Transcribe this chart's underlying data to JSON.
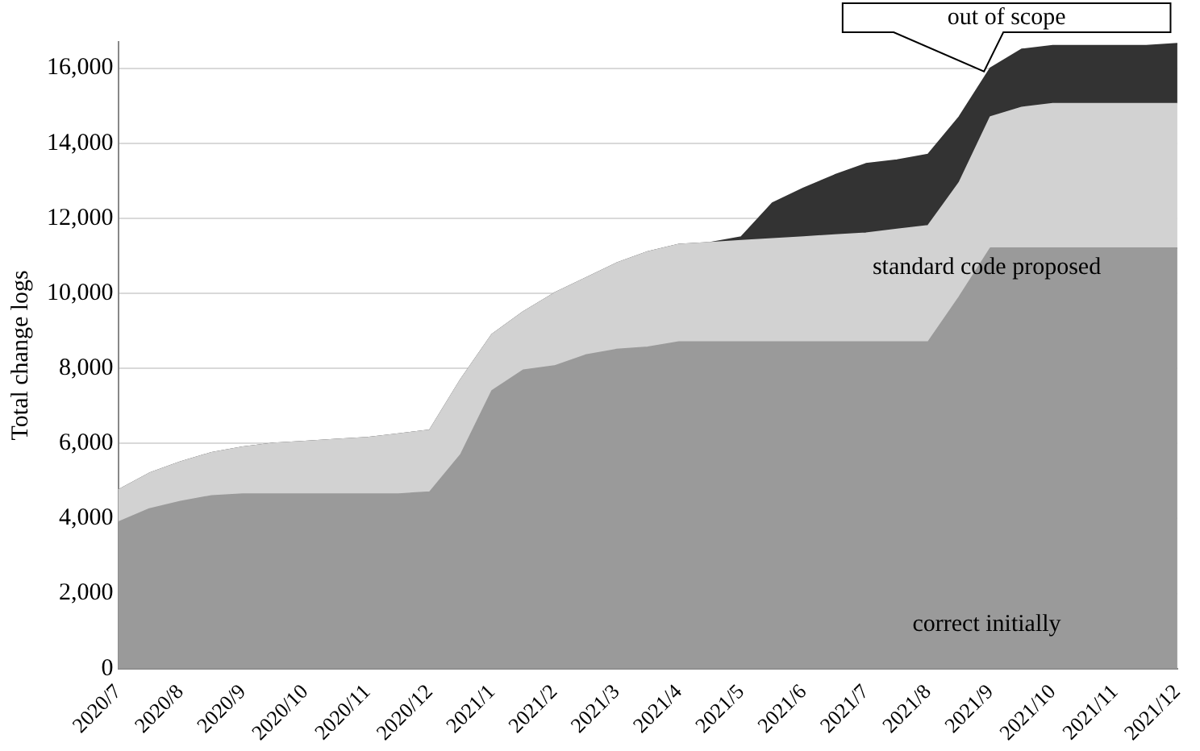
{
  "chart_data": {
    "type": "area",
    "stacked": true,
    "ylabel": "Total change logs",
    "categories": [
      "2020/7",
      null,
      "2020/8",
      null,
      "2020/9",
      null,
      "2020/10",
      null,
      "2020/11",
      null,
      "2020/12",
      null,
      "2021/1",
      null,
      "2021/2",
      null,
      "2021/3",
      null,
      "2021/4",
      null,
      "2021/5",
      null,
      "2021/6",
      null,
      "2021/7",
      null,
      "2021/8",
      null,
      "2021/9",
      null,
      "2021/10",
      null,
      "2021/11",
      null,
      "2021/12"
    ],
    "series": [
      {
        "color": "#9a9a9a",
        "values": [
          3900,
          4250,
          4450,
          4600,
          4650,
          4650,
          4650,
          4650,
          4650,
          4650,
          4700,
          5700,
          7400,
          7950,
          8060,
          8350,
          8500,
          8560,
          8700,
          8700,
          8700,
          8700,
          8700,
          8700,
          8700,
          8700,
          8700,
          9900,
          11200,
          11200,
          11200,
          11200,
          11200,
          11200,
          11200
        ]
      },
      {
        "color": "#d2d2d2",
        "values": [
          850,
          950,
          1050,
          1150,
          1250,
          1350,
          1400,
          1450,
          1500,
          1600,
          1650,
          2000,
          1500,
          1550,
          1940,
          2050,
          2300,
          2540,
          2600,
          2650,
          2700,
          2750,
          2800,
          2850,
          2900,
          3000,
          3100,
          3050,
          3500,
          3750,
          3850,
          3850,
          3850,
          3850,
          3850
        ]
      },
      {
        "color": "#333333",
        "values": [
          0,
          0,
          0,
          0,
          0,
          0,
          0,
          0,
          0,
          0,
          0,
          0,
          0,
          0,
          0,
          0,
          0,
          0,
          0,
          0,
          100,
          950,
          1300,
          1600,
          1850,
          1850,
          1900,
          1750,
          1300,
          1550,
          1550,
          1550,
          1550,
          1550,
          1600
        ]
      }
    ],
    "ylim": [
      0,
      16700
    ],
    "yticks": [
      0,
      {
        "value": 2000,
        "label": "2,000"
      },
      {
        "value": 4000,
        "label": "4,000"
      },
      {
        "value": 6000,
        "label": "6,000"
      },
      {
        "value": 8000,
        "label": "8,000"
      },
      {
        "value": 10000,
        "label": "10,000"
      },
      {
        "value": 12000,
        "label": "12,000"
      },
      {
        "value": 14000,
        "label": "14,000"
      },
      {
        "value": 16000,
        "label": "16,000"
      }
    ],
    "grid": "y",
    "legend": false,
    "annotations": [
      {
        "text": "out of scope",
        "x": "2021/9",
        "y": 16000
      },
      "standard code proposed",
      "correct initially"
    ]
  }
}
